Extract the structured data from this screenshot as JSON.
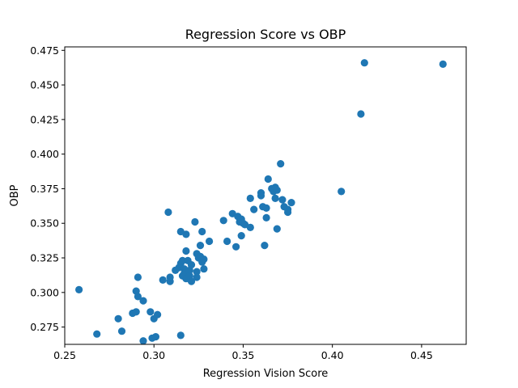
{
  "chart_data": {
    "type": "scatter",
    "title": "Regression Score vs OBP",
    "xlabel": "Regression Vision Score",
    "ylabel": "OBP",
    "xlim": [
      0.25,
      0.475
    ],
    "ylim": [
      0.2625,
      0.4775
    ],
    "xticks": [
      0.25,
      0.3,
      0.35,
      0.4,
      0.45
    ],
    "xtick_labels": [
      "0.25",
      "0.30",
      "0.35",
      "0.40",
      "0.45"
    ],
    "yticks": [
      0.275,
      0.3,
      0.325,
      0.35,
      0.375,
      0.4,
      0.425,
      0.45,
      0.475
    ],
    "ytick_labels": [
      "0.275",
      "0.300",
      "0.325",
      "0.350",
      "0.375",
      "0.400",
      "0.425",
      "0.450",
      "0.475"
    ],
    "grid": false,
    "marker_color": "#1f77b4",
    "points": [
      [
        0.258,
        0.302
      ],
      [
        0.268,
        0.27
      ],
      [
        0.28,
        0.281
      ],
      [
        0.282,
        0.272
      ],
      [
        0.288,
        0.285
      ],
      [
        0.29,
        0.301
      ],
      [
        0.29,
        0.286
      ],
      [
        0.291,
        0.297
      ],
      [
        0.291,
        0.311
      ],
      [
        0.294,
        0.294
      ],
      [
        0.294,
        0.265
      ],
      [
        0.298,
        0.286
      ],
      [
        0.299,
        0.267
      ],
      [
        0.3,
        0.281
      ],
      [
        0.301,
        0.268
      ],
      [
        0.302,
        0.284
      ],
      [
        0.305,
        0.309
      ],
      [
        0.308,
        0.358
      ],
      [
        0.309,
        0.311
      ],
      [
        0.309,
        0.308
      ],
      [
        0.312,
        0.316
      ],
      [
        0.314,
        0.318
      ],
      [
        0.315,
        0.344
      ],
      [
        0.315,
        0.321
      ],
      [
        0.315,
        0.269
      ],
      [
        0.316,
        0.312
      ],
      [
        0.316,
        0.323
      ],
      [
        0.317,
        0.317
      ],
      [
        0.317,
        0.314
      ],
      [
        0.318,
        0.342
      ],
      [
        0.318,
        0.33
      ],
      [
        0.318,
        0.31
      ],
      [
        0.319,
        0.323
      ],
      [
        0.32,
        0.316
      ],
      [
        0.32,
        0.312
      ],
      [
        0.321,
        0.32
      ],
      [
        0.321,
        0.308
      ],
      [
        0.323,
        0.351
      ],
      [
        0.324,
        0.328
      ],
      [
        0.324,
        0.315
      ],
      [
        0.324,
        0.311
      ],
      [
        0.325,
        0.325
      ],
      [
        0.326,
        0.334
      ],
      [
        0.326,
        0.326
      ],
      [
        0.327,
        0.344
      ],
      [
        0.327,
        0.322
      ],
      [
        0.328,
        0.324
      ],
      [
        0.328,
        0.317
      ],
      [
        0.331,
        0.337
      ],
      [
        0.339,
        0.352
      ],
      [
        0.341,
        0.337
      ],
      [
        0.344,
        0.357
      ],
      [
        0.346,
        0.333
      ],
      [
        0.347,
        0.355
      ],
      [
        0.348,
        0.351
      ],
      [
        0.349,
        0.341
      ],
      [
        0.349,
        0.353
      ],
      [
        0.35,
        0.35
      ],
      [
        0.351,
        0.349
      ],
      [
        0.354,
        0.347
      ],
      [
        0.354,
        0.368
      ],
      [
        0.356,
        0.36
      ],
      [
        0.36,
        0.372
      ],
      [
        0.36,
        0.37
      ],
      [
        0.361,
        0.362
      ],
      [
        0.362,
        0.334
      ],
      [
        0.363,
        0.354
      ],
      [
        0.363,
        0.361
      ],
      [
        0.364,
        0.382
      ],
      [
        0.366,
        0.375
      ],
      [
        0.367,
        0.373
      ],
      [
        0.368,
        0.376
      ],
      [
        0.368,
        0.368
      ],
      [
        0.369,
        0.374
      ],
      [
        0.369,
        0.346
      ],
      [
        0.371,
        0.393
      ],
      [
        0.372,
        0.367
      ],
      [
        0.373,
        0.362
      ],
      [
        0.375,
        0.36
      ],
      [
        0.375,
        0.358
      ],
      [
        0.377,
        0.365
      ],
      [
        0.405,
        0.373
      ],
      [
        0.416,
        0.429
      ],
      [
        0.418,
        0.466
      ],
      [
        0.462,
        0.465
      ]
    ]
  }
}
